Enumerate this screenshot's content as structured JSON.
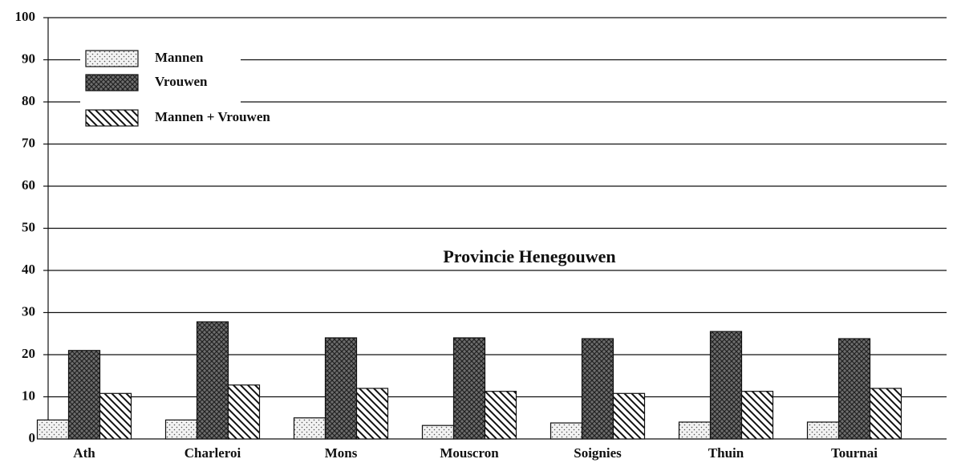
{
  "chart_data": {
    "type": "bar",
    "title": "Provincie Henegouwen",
    "categories": [
      "Ath",
      "Charleroi",
      "Mons",
      "Mouscron",
      "Soignies",
      "Thuin",
      "Tournai"
    ],
    "series": [
      {
        "name": "Mannen",
        "color": "#f2f2f2",
        "values": [
          4.5,
          4.5,
          5,
          3.2,
          3.8,
          4,
          4
        ]
      },
      {
        "name": "Vrouwen",
        "color": "#6e6e6e",
        "values": [
          21,
          27.8,
          24,
          24,
          23.8,
          25.5,
          23.8
        ]
      },
      {
        "name": "Mannen + Vrouwen",
        "color": "#ffffff",
        "values": [
          10.8,
          12.8,
          12,
          11.3,
          10.8,
          11.3,
          12
        ]
      }
    ],
    "ylim": [
      0,
      100
    ],
    "yticks": [
      0,
      10,
      20,
      30,
      40,
      50,
      60,
      70,
      80,
      90,
      100
    ],
    "grid": true,
    "legend": "upper-left"
  }
}
